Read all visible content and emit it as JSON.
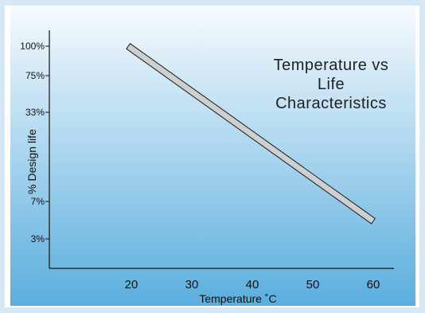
{
  "chart_data": {
    "type": "line",
    "title_lines": [
      "Temperature vs",
      "Life",
      "Characteristics"
    ],
    "xlabel": "Temperature ˚C",
    "ylabel": "% Design life",
    "x_ticks": [
      "20",
      "30",
      "40",
      "50",
      "60"
    ],
    "y_ticks": [
      "100%",
      "75%",
      "33%",
      "7%",
      "3%"
    ],
    "series": [
      {
        "values": [
          [
            19.5,
            100
          ],
          [
            60,
            5
          ]
        ]
      }
    ],
    "xlim": [
      10,
      63
    ],
    "ylim": [
      1,
      120
    ],
    "y_scale": "log",
    "grid": false,
    "colors": {
      "bg_top": "#f7fbfe",
      "bg_bottom": "#5aaede",
      "band_fill": "#cfcfcf",
      "band_stroke": "#1a1a1a",
      "frame": "#d6e8f5"
    }
  }
}
